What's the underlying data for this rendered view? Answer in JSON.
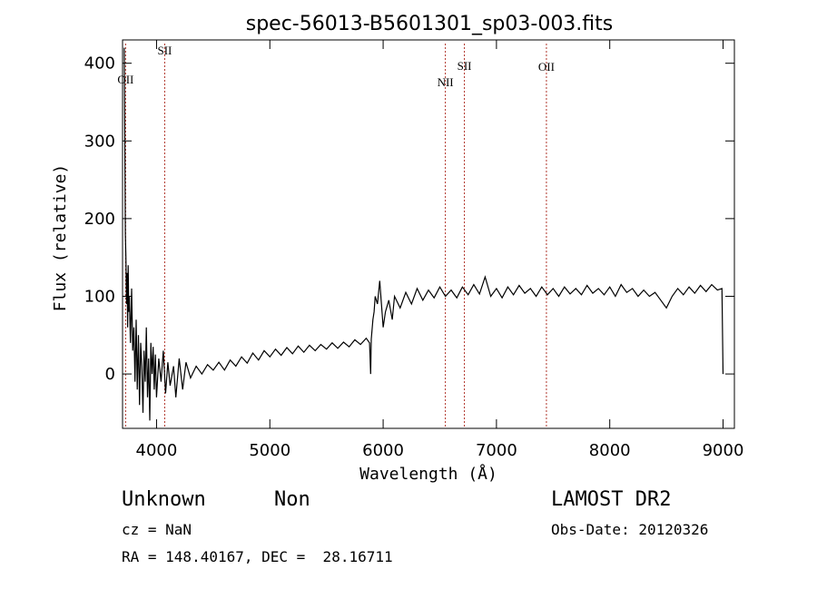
{
  "chart_data": {
    "type": "line",
    "title": "spec-56013-B5601301_sp03-003.fits",
    "xlabel": "Wavelength (Å)",
    "ylabel": "Flux (relative)",
    "xlim": [
      3700,
      9100
    ],
    "ylim": [
      -70,
      430
    ],
    "xticks": [
      4000,
      5000,
      6000,
      7000,
      8000,
      9000
    ],
    "yticks": [
      0,
      100,
      200,
      300,
      400
    ],
    "grid": false,
    "series": [
      {
        "color": "#000000",
        "points": [
          [
            3715,
            420
          ],
          [
            3720,
            300
          ],
          [
            3725,
            180
          ],
          [
            3730,
            150
          ],
          [
            3735,
            90
          ],
          [
            3740,
            130
          ],
          [
            3745,
            60
          ],
          [
            3750,
            140
          ],
          [
            3755,
            80
          ],
          [
            3760,
            100
          ],
          [
            3770,
            40
          ],
          [
            3780,
            110
          ],
          [
            3790,
            30
          ],
          [
            3800,
            60
          ],
          [
            3810,
            -10
          ],
          [
            3820,
            70
          ],
          [
            3830,
            -20
          ],
          [
            3840,
            50
          ],
          [
            3850,
            -40
          ],
          [
            3860,
            40
          ],
          [
            3870,
            10
          ],
          [
            3880,
            -50
          ],
          [
            3890,
            30
          ],
          [
            3900,
            -10
          ],
          [
            3910,
            60
          ],
          [
            3920,
            -30
          ],
          [
            3930,
            20
          ],
          [
            3940,
            -60
          ],
          [
            3950,
            40
          ],
          [
            3960,
            0
          ],
          [
            3970,
            35
          ],
          [
            3980,
            -20
          ],
          [
            3990,
            25
          ],
          [
            4000,
            -30
          ],
          [
            4020,
            20
          ],
          [
            4040,
            -10
          ],
          [
            4060,
            30
          ],
          [
            4080,
            -25
          ],
          [
            4100,
            15
          ],
          [
            4120,
            -15
          ],
          [
            4150,
            10
          ],
          [
            4170,
            -30
          ],
          [
            4200,
            20
          ],
          [
            4230,
            -20
          ],
          [
            4260,
            15
          ],
          [
            4300,
            -5
          ],
          [
            4350,
            10
          ],
          [
            4400,
            0
          ],
          [
            4450,
            12
          ],
          [
            4500,
            5
          ],
          [
            4550,
            15
          ],
          [
            4600,
            5
          ],
          [
            4650,
            18
          ],
          [
            4700,
            10
          ],
          [
            4750,
            22
          ],
          [
            4800,
            14
          ],
          [
            4850,
            27
          ],
          [
            4900,
            18
          ],
          [
            4950,
            30
          ],
          [
            5000,
            22
          ],
          [
            5050,
            32
          ],
          [
            5100,
            24
          ],
          [
            5150,
            34
          ],
          [
            5200,
            26
          ],
          [
            5250,
            36
          ],
          [
            5300,
            28
          ],
          [
            5350,
            37
          ],
          [
            5400,
            30
          ],
          [
            5450,
            38
          ],
          [
            5500,
            32
          ],
          [
            5550,
            40
          ],
          [
            5600,
            33
          ],
          [
            5650,
            41
          ],
          [
            5700,
            35
          ],
          [
            5750,
            44
          ],
          [
            5800,
            38
          ],
          [
            5850,
            46
          ],
          [
            5880,
            40
          ],
          [
            5890,
            0
          ],
          [
            5895,
            45
          ],
          [
            5910,
            70
          ],
          [
            5920,
            80
          ],
          [
            5930,
            100
          ],
          [
            5950,
            90
          ],
          [
            5970,
            120
          ],
          [
            6000,
            60
          ],
          [
            6020,
            80
          ],
          [
            6050,
            95
          ],
          [
            6080,
            70
          ],
          [
            6100,
            100
          ],
          [
            6150,
            85
          ],
          [
            6200,
            105
          ],
          [
            6250,
            90
          ],
          [
            6300,
            110
          ],
          [
            6350,
            95
          ],
          [
            6400,
            108
          ],
          [
            6450,
            98
          ],
          [
            6500,
            112
          ],
          [
            6550,
            100
          ],
          [
            6600,
            108
          ],
          [
            6650,
            98
          ],
          [
            6700,
            112
          ],
          [
            6750,
            102
          ],
          [
            6800,
            115
          ],
          [
            6850,
            103
          ],
          [
            6900,
            125
          ],
          [
            6950,
            100
          ],
          [
            7000,
            110
          ],
          [
            7050,
            98
          ],
          [
            7100,
            112
          ],
          [
            7150,
            102
          ],
          [
            7200,
            114
          ],
          [
            7250,
            104
          ],
          [
            7300,
            110
          ],
          [
            7350,
            100
          ],
          [
            7400,
            112
          ],
          [
            7450,
            102
          ],
          [
            7500,
            110
          ],
          [
            7550,
            100
          ],
          [
            7600,
            112
          ],
          [
            7650,
            103
          ],
          [
            7700,
            110
          ],
          [
            7750,
            102
          ],
          [
            7800,
            114
          ],
          [
            7850,
            104
          ],
          [
            7900,
            110
          ],
          [
            7950,
            102
          ],
          [
            8000,
            112
          ],
          [
            8050,
            100
          ],
          [
            8100,
            115
          ],
          [
            8150,
            105
          ],
          [
            8200,
            110
          ],
          [
            8250,
            100
          ],
          [
            8300,
            108
          ],
          [
            8350,
            100
          ],
          [
            8400,
            105
          ],
          [
            8450,
            95
          ],
          [
            8500,
            85
          ],
          [
            8550,
            100
          ],
          [
            8600,
            110
          ],
          [
            8650,
            102
          ],
          [
            8700,
            112
          ],
          [
            8750,
            104
          ],
          [
            8800,
            114
          ],
          [
            8850,
            106
          ],
          [
            8900,
            115
          ],
          [
            8950,
            108
          ],
          [
            8990,
            110
          ],
          [
            9000,
            0
          ]
        ]
      }
    ],
    "line_markers": [
      {
        "label": "OII",
        "x": 3727
      },
      {
        "label": "SII",
        "x": 4072
      },
      {
        "label": "NII",
        "x": 6549
      },
      {
        "label": "SII",
        "x": 6717
      },
      {
        "label": "OII",
        "x": 7441
      }
    ],
    "marker_color": "#b0342a"
  },
  "info": {
    "class": "Unknown",
    "subclass": "Non",
    "cz": "cz = NaN",
    "radec": "RA = 148.40167, DEC =  28.16711",
    "survey": "LAMOST DR2",
    "obsdate": "Obs-Date: 20120326"
  }
}
